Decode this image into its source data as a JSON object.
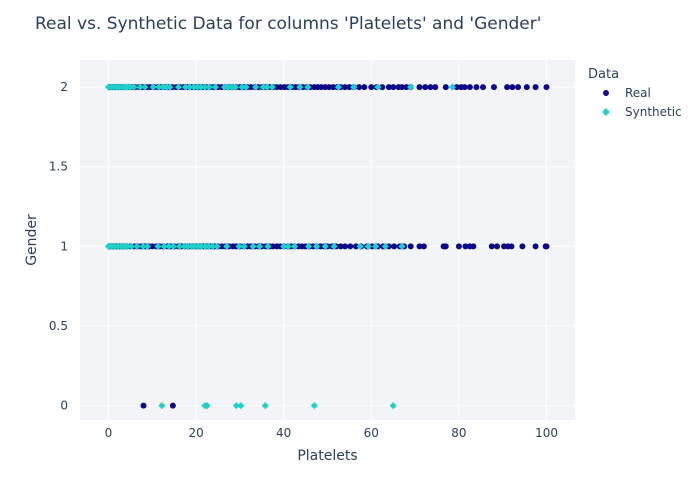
{
  "chart_data": {
    "type": "scatter",
    "title": "Real vs. Synthetic Data for columns 'Platelets' and 'Gender'",
    "xlabel": "Platelets",
    "ylabel": "Gender",
    "xlim": [
      -6.5,
      106.5
    ],
    "ylim": [
      -0.09,
      2.17
    ],
    "x_ticks": [
      0,
      20,
      40,
      60,
      80,
      100
    ],
    "x_tick_labels": [
      "0",
      "20",
      "40",
      "60",
      "80",
      "100"
    ],
    "y_ticks": [
      0,
      0.5,
      1,
      1.5,
      2
    ],
    "y_tick_labels": [
      "0",
      "0.5",
      "1",
      "1.5",
      "2"
    ],
    "grid": true,
    "legend": {
      "title": "Data",
      "placement": "right"
    },
    "series": [
      {
        "name": "Real",
        "color": "#0d0887",
        "marker": "circle",
        "points": [
          [
            0.3,
            2
          ],
          [
            0.8,
            2
          ],
          [
            1.5,
            2
          ],
          [
            2.2,
            2
          ],
          [
            3,
            2
          ],
          [
            3.6,
            2
          ],
          [
            4.5,
            2
          ],
          [
            5.3,
            2
          ],
          [
            6.1,
            2
          ],
          [
            7,
            2
          ],
          [
            7.8,
            2
          ],
          [
            8.7,
            2
          ],
          [
            9.5,
            2
          ],
          [
            10.4,
            2
          ],
          [
            11.2,
            2
          ],
          [
            12,
            2
          ],
          [
            13,
            2
          ],
          [
            13.8,
            2
          ],
          [
            14.6,
            2
          ],
          [
            15.5,
            2
          ],
          [
            16.4,
            2
          ],
          [
            17.2,
            2
          ],
          [
            18,
            2
          ],
          [
            19,
            2
          ],
          [
            19.8,
            2
          ],
          [
            20.7,
            2
          ],
          [
            21.5,
            2
          ],
          [
            22.3,
            2
          ],
          [
            23.2,
            2
          ],
          [
            24,
            2
          ],
          [
            25,
            2
          ],
          [
            25.8,
            2
          ],
          [
            26.6,
            2
          ],
          [
            27.5,
            2
          ],
          [
            28.3,
            2
          ],
          [
            29.2,
            2
          ],
          [
            30,
            2
          ],
          [
            30.9,
            2
          ],
          [
            31.7,
            2
          ],
          [
            32.5,
            2
          ],
          [
            33.4,
            2
          ],
          [
            34.2,
            2
          ],
          [
            35,
            2
          ],
          [
            35.9,
            2
          ],
          [
            36.8,
            2
          ],
          [
            37.6,
            2
          ],
          [
            38.4,
            2
          ],
          [
            39.3,
            2
          ],
          [
            40.2,
            2
          ],
          [
            41,
            2
          ],
          [
            41.9,
            2
          ],
          [
            42.7,
            2
          ],
          [
            43.5,
            2
          ],
          [
            44.4,
            2
          ],
          [
            45.3,
            2
          ],
          [
            46.1,
            2
          ],
          [
            47,
            2
          ],
          [
            47.8,
            2
          ],
          [
            48.6,
            2
          ],
          [
            49.5,
            2
          ],
          [
            50.4,
            2
          ],
          [
            51.3,
            2
          ],
          [
            52.2,
            2
          ],
          [
            53,
            2
          ],
          [
            54,
            2
          ],
          [
            55,
            2
          ],
          [
            56,
            2
          ],
          [
            57.2,
            2
          ],
          [
            58.4,
            2
          ],
          [
            60,
            2
          ],
          [
            61.2,
            2
          ],
          [
            62.5,
            2
          ],
          [
            64,
            2
          ],
          [
            65,
            2
          ],
          [
            66.2,
            2
          ],
          [
            67,
            2
          ],
          [
            68,
            2
          ],
          [
            69,
            2
          ],
          [
            71,
            2
          ],
          [
            72.3,
            2
          ],
          [
            73.5,
            2
          ],
          [
            74.6,
            2
          ],
          [
            77,
            2
          ],
          [
            79.5,
            2
          ],
          [
            80.5,
            2
          ],
          [
            81.3,
            2
          ],
          [
            82.5,
            2
          ],
          [
            84,
            2
          ],
          [
            85.5,
            2
          ],
          [
            88,
            2
          ],
          [
            91,
            2
          ],
          [
            92.2,
            2
          ],
          [
            93.5,
            2
          ],
          [
            95.5,
            2
          ],
          [
            97.5,
            2
          ],
          [
            100,
            2
          ],
          [
            0.3,
            1
          ],
          [
            1,
            1
          ],
          [
            1.8,
            1
          ],
          [
            2.6,
            1
          ],
          [
            3.4,
            1
          ],
          [
            4.2,
            1
          ],
          [
            5,
            1
          ],
          [
            5.9,
            1
          ],
          [
            6.7,
            1
          ],
          [
            7.5,
            1
          ],
          [
            8.4,
            1
          ],
          [
            9.2,
            1
          ],
          [
            10,
            1
          ],
          [
            10.9,
            1
          ],
          [
            11.7,
            1
          ],
          [
            12.5,
            1
          ],
          [
            13.4,
            1
          ],
          [
            14.2,
            1
          ],
          [
            15,
            1
          ],
          [
            15.9,
            1
          ],
          [
            16.7,
            1
          ],
          [
            17.5,
            1
          ],
          [
            18.4,
            1
          ],
          [
            19.2,
            1
          ],
          [
            20,
            1
          ],
          [
            20.9,
            1
          ],
          [
            21.7,
            1
          ],
          [
            22.5,
            1
          ],
          [
            23.4,
            1
          ],
          [
            24.2,
            1
          ],
          [
            25,
            1
          ],
          [
            25.9,
            1
          ],
          [
            26.7,
            1
          ],
          [
            27.5,
            1
          ],
          [
            28.4,
            1
          ],
          [
            29.2,
            1
          ],
          [
            30,
            1
          ],
          [
            30.9,
            1
          ],
          [
            31.7,
            1
          ],
          [
            32.5,
            1
          ],
          [
            33.4,
            1
          ],
          [
            34.2,
            1
          ],
          [
            35,
            1
          ],
          [
            35.9,
            1
          ],
          [
            36.7,
            1
          ],
          [
            37.5,
            1
          ],
          [
            38.4,
            1
          ],
          [
            39.2,
            1
          ],
          [
            40,
            1
          ],
          [
            40.9,
            1
          ],
          [
            41.7,
            1
          ],
          [
            42.5,
            1
          ],
          [
            43.4,
            1
          ],
          [
            44.2,
            1
          ],
          [
            45,
            1
          ],
          [
            45.9,
            1
          ],
          [
            46.7,
            1
          ],
          [
            47.5,
            1
          ],
          [
            48.4,
            1
          ],
          [
            49.2,
            1
          ],
          [
            50,
            1
          ],
          [
            51,
            1
          ],
          [
            52,
            1
          ],
          [
            53,
            1
          ],
          [
            54,
            1
          ],
          [
            55.2,
            1
          ],
          [
            56.5,
            1
          ],
          [
            57.7,
            1
          ],
          [
            59,
            1
          ],
          [
            60.2,
            1
          ],
          [
            61.5,
            1
          ],
          [
            62.7,
            1
          ],
          [
            64,
            1
          ],
          [
            65.2,
            1
          ],
          [
            66.5,
            1
          ],
          [
            67.5,
            1
          ],
          [
            69,
            1
          ],
          [
            71,
            1
          ],
          [
            72,
            1
          ],
          [
            76.5,
            1
          ],
          [
            77,
            1
          ],
          [
            80,
            1
          ],
          [
            81.5,
            1
          ],
          [
            82.5,
            1
          ],
          [
            83.3,
            1
          ],
          [
            87.5,
            1
          ],
          [
            88.7,
            1
          ],
          [
            90.3,
            1
          ],
          [
            91.2,
            1
          ],
          [
            92,
            1
          ],
          [
            94.5,
            1
          ],
          [
            97.5,
            1
          ],
          [
            99.8,
            1
          ],
          [
            100,
            1
          ],
          [
            8,
            0
          ],
          [
            14.7,
            0
          ]
        ]
      },
      {
        "name": "Synthetic",
        "color": "#1fd0c8",
        "marker": "diamond",
        "points": [
          [
            0,
            2
          ],
          [
            0.6,
            2
          ],
          [
            1.2,
            2
          ],
          [
            1.9,
            2
          ],
          [
            2.5,
            2
          ],
          [
            3.2,
            2
          ],
          [
            3.8,
            2
          ],
          [
            4.4,
            2
          ],
          [
            5.1,
            2
          ],
          [
            5.8,
            2
          ],
          [
            7.2,
            2
          ],
          [
            8.3,
            2
          ],
          [
            10.2,
            2
          ],
          [
            11.5,
            2
          ],
          [
            12.4,
            2
          ],
          [
            13.2,
            2
          ],
          [
            14,
            2
          ],
          [
            16,
            2
          ],
          [
            17.6,
            2
          ],
          [
            18.5,
            2
          ],
          [
            19.5,
            2
          ],
          [
            20.3,
            2
          ],
          [
            21.1,
            2
          ],
          [
            22,
            2
          ],
          [
            23,
            2
          ],
          [
            24.4,
            2
          ],
          [
            26.5,
            2
          ],
          [
            27.3,
            2
          ],
          [
            28.2,
            2
          ],
          [
            29,
            2
          ],
          [
            30.5,
            2
          ],
          [
            31.4,
            2
          ],
          [
            33.6,
            2
          ],
          [
            35.3,
            2
          ],
          [
            36.2,
            2
          ],
          [
            37.4,
            2
          ],
          [
            41.5,
            2
          ],
          [
            43.7,
            2
          ],
          [
            45.5,
            2
          ],
          [
            52.5,
            2
          ],
          [
            56,
            2
          ],
          [
            61.5,
            2
          ],
          [
            69,
            2
          ],
          [
            78.5,
            2
          ],
          [
            0,
            1
          ],
          [
            0.7,
            1
          ],
          [
            1.4,
            1
          ],
          [
            2.1,
            1
          ],
          [
            2.9,
            1
          ],
          [
            3.6,
            1
          ],
          [
            4.3,
            1
          ],
          [
            5.2,
            1
          ],
          [
            6.5,
            1
          ],
          [
            7.9,
            1
          ],
          [
            8.9,
            1
          ],
          [
            11.3,
            1
          ],
          [
            12.7,
            1
          ],
          [
            13.8,
            1
          ],
          [
            14.8,
            1
          ],
          [
            16.2,
            1
          ],
          [
            17.3,
            1
          ],
          [
            18.1,
            1
          ],
          [
            19,
            1
          ],
          [
            19.7,
            1
          ],
          [
            20.5,
            1
          ],
          [
            21.2,
            1
          ],
          [
            22.1,
            1
          ],
          [
            22.9,
            1
          ],
          [
            23.8,
            1
          ],
          [
            24.8,
            1
          ],
          [
            27,
            1
          ],
          [
            29.8,
            1
          ],
          [
            31,
            1
          ],
          [
            33,
            1
          ],
          [
            34.5,
            1
          ],
          [
            36.4,
            1
          ],
          [
            40,
            1
          ],
          [
            41,
            1
          ],
          [
            42.5,
            1
          ],
          [
            45.7,
            1
          ],
          [
            47.5,
            1
          ],
          [
            49.5,
            1
          ],
          [
            51.5,
            1
          ],
          [
            57.5,
            1
          ],
          [
            59.3,
            1
          ],
          [
            61,
            1
          ],
          [
            63.2,
            1
          ],
          [
            67,
            1
          ],
          [
            12.2,
            0
          ],
          [
            22,
            0
          ],
          [
            22.5,
            0
          ],
          [
            29.2,
            0
          ],
          [
            30.2,
            0
          ],
          [
            35.8,
            0
          ],
          [
            47,
            0
          ],
          [
            65,
            0
          ]
        ]
      }
    ]
  }
}
